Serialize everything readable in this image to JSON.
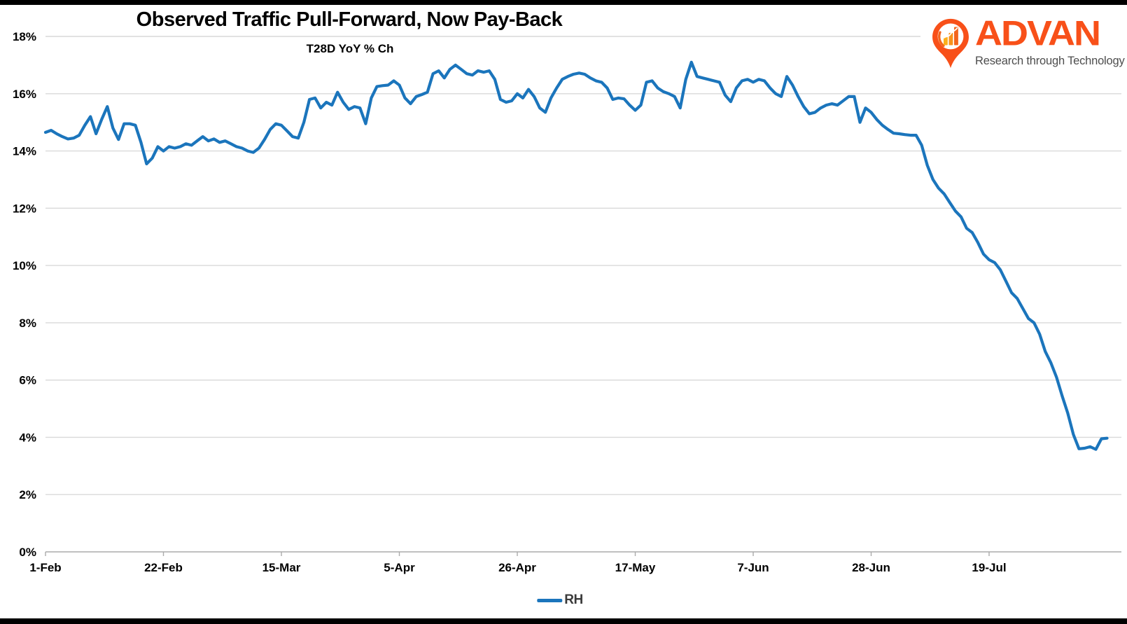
{
  "page": {
    "title": "Observed Traffic Pull-Forward, Now Pay-Back",
    "subtitle": "T28D YoY % Ch"
  },
  "logo": {
    "brand": "ADVAN",
    "tagline": "Research through Technology",
    "brand_color": "#F85019",
    "tagline_color": "#4d4d4d",
    "pin_bar_colors": [
      "#FBAF1C",
      "#F8921C",
      "#F3641C"
    ]
  },
  "legend": {
    "series_label": "RH",
    "swatch_color": "#1B75BC"
  },
  "chart_data": {
    "type": "line",
    "series_name": "RH",
    "title": "Observed Traffic Pull-Forward, Now Pay-Back",
    "subtitle": "T28D YoY % Ch",
    "line_color": "#1B75BC",
    "grid": "horizontal-only",
    "gridline_color": "#D9D9D9",
    "axis_color": "#ABABAB",
    "legend_position": "bottom-center",
    "ylim": [
      0,
      18
    ],
    "y_tick_step_pct": 2,
    "y_tick_labels": [
      "0%",
      "2%",
      "4%",
      "6%",
      "8%",
      "10%",
      "12%",
      "14%",
      "16%",
      "18%"
    ],
    "x_tick_labels": [
      "1-Feb",
      "22-Feb",
      "15-Mar",
      "5-Apr",
      "26-Apr",
      "17-May",
      "7-Jun",
      "28-Jun",
      "19-Jul"
    ],
    "x_tick_interval_days": 21,
    "x_start_date": "1-Feb",
    "x_frequency": "daily",
    "x_end_date": "9-Aug",
    "values": [
      14.65,
      14.72,
      14.6,
      14.5,
      14.42,
      14.45,
      14.55,
      14.9,
      15.2,
      14.6,
      15.1,
      15.55,
      14.8,
      14.4,
      14.95,
      14.95,
      14.9,
      14.3,
      13.55,
      13.75,
      14.15,
      14.0,
      14.15,
      14.1,
      14.15,
      14.25,
      14.2,
      14.35,
      14.5,
      14.35,
      14.42,
      14.3,
      14.35,
      14.25,
      14.15,
      14.1,
      14.0,
      13.95,
      14.1,
      14.4,
      14.75,
      14.95,
      14.9,
      14.7,
      14.5,
      14.45,
      15.0,
      15.8,
      15.85,
      15.5,
      15.7,
      15.6,
      16.05,
      15.7,
      15.45,
      15.55,
      15.5,
      14.95,
      15.85,
      16.25,
      16.28,
      16.3,
      16.45,
      16.3,
      15.85,
      15.65,
      15.9,
      15.97,
      16.05,
      16.7,
      16.8,
      16.55,
      16.85,
      17.0,
      16.85,
      16.7,
      16.65,
      16.8,
      16.75,
      16.8,
      16.5,
      15.8,
      15.7,
      15.75,
      16.0,
      15.85,
      16.15,
      15.9,
      15.5,
      15.35,
      15.85,
      16.2,
      16.5,
      16.6,
      16.68,
      16.72,
      16.68,
      16.55,
      16.45,
      16.4,
      16.2,
      15.8,
      15.85,
      15.82,
      15.6,
      15.42,
      15.6,
      16.4,
      16.45,
      16.2,
      16.07,
      16.0,
      15.9,
      15.5,
      16.5,
      17.1,
      16.6,
      16.55,
      16.5,
      16.45,
      16.4,
      15.95,
      15.72,
      16.2,
      16.45,
      16.5,
      16.4,
      16.5,
      16.45,
      16.2,
      16.0,
      15.9,
      16.6,
      16.3,
      15.9,
      15.55,
      15.3,
      15.35,
      15.5,
      15.6,
      15.65,
      15.6,
      15.75,
      15.9,
      15.9,
      15.0,
      15.5,
      15.35,
      15.1,
      14.9,
      14.75,
      14.62,
      14.6,
      14.57,
      14.55,
      14.55,
      14.2,
      13.5,
      13.0,
      12.7,
      12.5,
      12.2,
      11.9,
      11.7,
      11.3,
      11.15,
      10.8,
      10.4,
      10.2,
      10.1,
      9.85,
      9.45,
      9.05,
      8.85,
      8.5,
      8.15,
      8.0,
      7.6,
      7.0,
      6.6,
      6.1,
      5.45,
      4.85,
      4.1,
      3.6,
      3.62,
      3.67,
      3.58,
      3.95,
      3.97
    ]
  }
}
